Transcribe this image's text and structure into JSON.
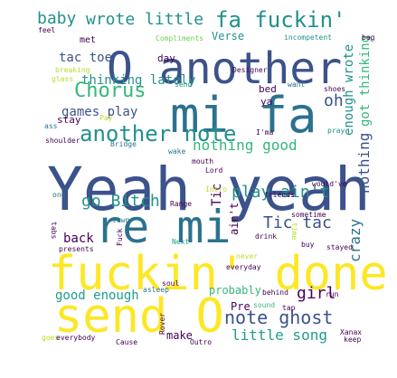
{
  "colors": {
    "dark_purple": "#440154",
    "indigo": "#3b528b",
    "blue": "#31688e",
    "steel": "#2c728e",
    "teal": "#21918c",
    "sea": "#1f9e89",
    "green": "#35b779",
    "lime": "#6ece58",
    "yellowgreen": "#b5de2b",
    "yellow": "#fde725"
  },
  "words": [
    {
      "text": "Yeah yeah"
    },
    {
      "text": "re mi"
    },
    {
      "text": "mi fa"
    },
    {
      "text": "O another"
    },
    {
      "text": "fuckin' done"
    },
    {
      "text": "send O"
    },
    {
      "text": "another note"
    },
    {
      "text": "fa fuckin'"
    },
    {
      "text": "wrote little"
    },
    {
      "text": "baby"
    },
    {
      "text": "Chorus"
    },
    {
      "text": "tac toe"
    },
    {
      "text": "games play"
    },
    {
      "text": "go Bitch"
    },
    {
      "text": "play ain't"
    },
    {
      "text": "Tic tac"
    },
    {
      "text": "note ghost"
    },
    {
      "text": "girl"
    },
    {
      "text": "little song"
    },
    {
      "text": "good enough"
    },
    {
      "text": "nothing good"
    },
    {
      "text": "thinking lately"
    },
    {
      "text": "back"
    },
    {
      "text": "oh"
    },
    {
      "text": "crazy"
    },
    {
      "text": "nothing"
    },
    {
      "text": "got thinking"
    },
    {
      "text": "enough wrote"
    },
    {
      "text": "ain't"
    },
    {
      "text": "Tic"
    },
    {
      "text": "probably"
    },
    {
      "text": "make"
    },
    {
      "text": "Pre"
    },
    {
      "text": "Verse"
    },
    {
      "text": "met"
    },
    {
      "text": "day"
    },
    {
      "text": "bed"
    },
    {
      "text": "ya"
    },
    {
      "text": "stay"
    },
    {
      "text": "feel"
    },
    {
      "text": "Compliments"
    },
    {
      "text": "incompetent"
    },
    {
      "text": "bag"
    },
    {
      "text": "Designer"
    },
    {
      "text": "breaking"
    },
    {
      "text": "glass"
    },
    {
      "text": "send"
    },
    {
      "text": "want"
    },
    {
      "text": "shoes"
    },
    {
      "text": "ass"
    },
    {
      "text": "Pay"
    },
    {
      "text": "I'ma"
    },
    {
      "text": "pray"
    },
    {
      "text": "shoulder"
    },
    {
      "text": "Bridge"
    },
    {
      "text": "wake"
    },
    {
      "text": "mouth"
    },
    {
      "text": "Lord"
    },
    {
      "text": "Intro"
    },
    {
      "text": "one"
    },
    {
      "text": "friends"
    },
    {
      "text": "sometime"
    },
    {
      "text": "would've"
    },
    {
      "text": "tabs"
    },
    {
      "text": "Range"
    },
    {
      "text": "town"
    },
    {
      "text": "Fuck"
    },
    {
      "text": "Next"
    },
    {
      "text": "drink"
    },
    {
      "text": "time"
    },
    {
      "text": "buy"
    },
    {
      "text": "stayed"
    },
    {
      "text": "presents"
    },
    {
      "text": "never"
    },
    {
      "text": "everyday"
    },
    {
      "text": "soul"
    },
    {
      "text": "asleep"
    },
    {
      "text": "behind"
    },
    {
      "text": "run"
    },
    {
      "text": "Rover"
    },
    {
      "text": "tap"
    },
    {
      "text": "sound"
    },
    {
      "text": "Xanax"
    },
    {
      "text": "goes"
    },
    {
      "text": "everybody"
    },
    {
      "text": "Cause"
    },
    {
      "text": "Outro"
    },
    {
      "text": "keep"
    }
  ]
}
